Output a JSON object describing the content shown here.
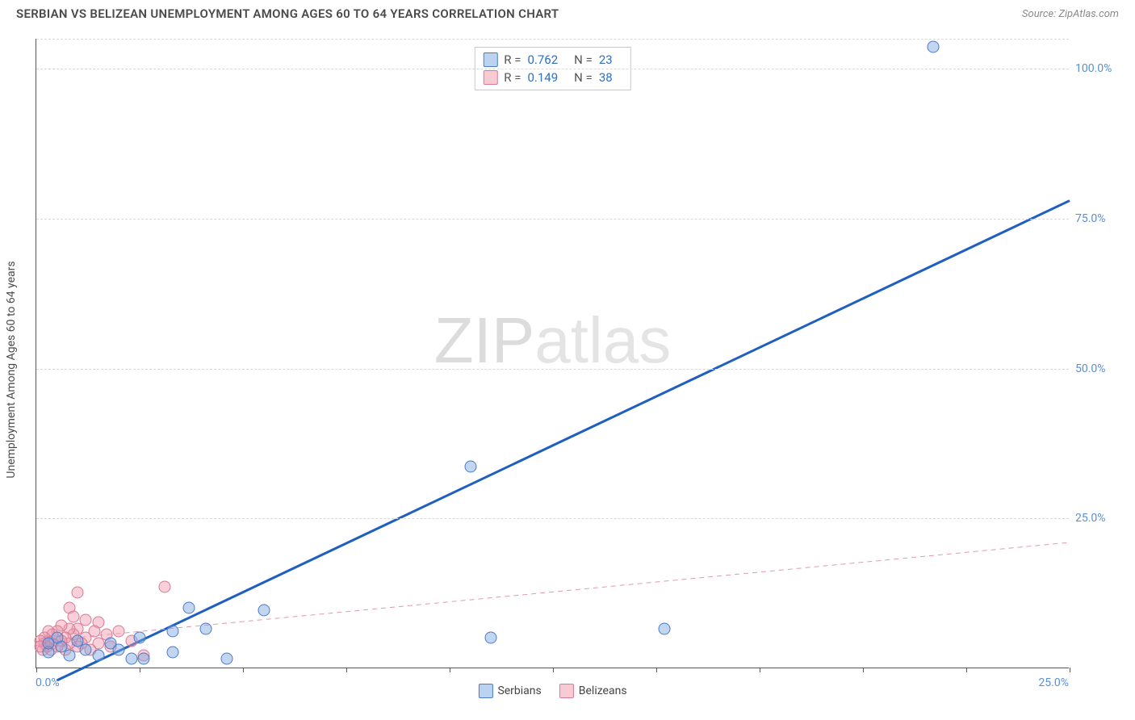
{
  "header": {
    "title": "SERBIAN VS BELIZEAN UNEMPLOYMENT AMONG AGES 60 TO 64 YEARS CORRELATION CHART",
    "source": "Source: ZipAtlas.com"
  },
  "watermark": {
    "bold": "ZIP",
    "thin": "atlas"
  },
  "chart": {
    "type": "scatter",
    "y_axis_label": "Unemployment Among Ages 60 to 64 years",
    "xlim": [
      0,
      25
    ],
    "ylim": [
      0,
      105
    ],
    "y_ticks": [
      25,
      50,
      75,
      100
    ],
    "y_tick_labels": [
      "25.0%",
      "50.0%",
      "75.0%",
      "100.0%"
    ],
    "x_ticks": [
      0,
      2.5,
      5,
      7.5,
      10,
      12.5,
      15,
      17.5,
      20,
      22.5,
      25
    ],
    "x_tick_labels_shown": {
      "0": "0.0%",
      "25": "25.0%"
    },
    "grid_color": "#d8d8d8",
    "background_color": "#ffffff",
    "series": {
      "serbians": {
        "label": "Serbians",
        "color_fill": "rgba(120,165,225,0.45)",
        "color_stroke": "#4a7bc8",
        "trend": {
          "x1": 0.5,
          "y1": -2,
          "x2": 25,
          "y2": 78,
          "stroke": "#1f5fc0",
          "width": 3,
          "dash": "none"
        },
        "stats": {
          "R": "0.762",
          "N": "23"
        },
        "points": [
          {
            "x": 21.7,
            "y": 103.5
          },
          {
            "x": 10.5,
            "y": 33.5
          },
          {
            "x": 15.2,
            "y": 6.5
          },
          {
            "x": 11.0,
            "y": 5.0
          },
          {
            "x": 5.5,
            "y": 9.5
          },
          {
            "x": 4.6,
            "y": 1.5
          },
          {
            "x": 4.1,
            "y": 6.5
          },
          {
            "x": 3.7,
            "y": 10.0
          },
          {
            "x": 3.3,
            "y": 2.5
          },
          {
            "x": 3.3,
            "y": 6.0
          },
          {
            "x": 2.6,
            "y": 1.5
          },
          {
            "x": 2.5,
            "y": 5.0
          },
          {
            "x": 2.3,
            "y": 1.5
          },
          {
            "x": 2.0,
            "y": 3.0
          },
          {
            "x": 1.8,
            "y": 4.0
          },
          {
            "x": 1.5,
            "y": 2.0
          },
          {
            "x": 1.2,
            "y": 3.0
          },
          {
            "x": 1.0,
            "y": 4.5
          },
          {
            "x": 0.8,
            "y": 2.0
          },
          {
            "x": 0.6,
            "y": 3.5
          },
          {
            "x": 0.5,
            "y": 5.0
          },
          {
            "x": 0.3,
            "y": 2.5
          },
          {
            "x": 0.3,
            "y": 4.0
          }
        ]
      },
      "belizeans": {
        "label": "Belizeans",
        "color_fill": "rgba(240,150,170,0.45)",
        "color_stroke": "#d87a95",
        "trend": {
          "x1": 0,
          "y1": 4.5,
          "x2": 25,
          "y2": 21,
          "stroke": "#e09aad",
          "width": 1,
          "dash": "6,5"
        },
        "stats": {
          "R": "0.149",
          "N": "38"
        },
        "points": [
          {
            "x": 3.1,
            "y": 13.5
          },
          {
            "x": 1.0,
            "y": 12.5
          },
          {
            "x": 0.8,
            "y": 10.0
          },
          {
            "x": 2.6,
            "y": 2.0
          },
          {
            "x": 2.3,
            "y": 4.5
          },
          {
            "x": 2.0,
            "y": 6.0
          },
          {
            "x": 1.8,
            "y": 3.5
          },
          {
            "x": 1.7,
            "y": 5.5
          },
          {
            "x": 1.5,
            "y": 7.5
          },
          {
            "x": 1.5,
            "y": 4.0
          },
          {
            "x": 1.4,
            "y": 6.0
          },
          {
            "x": 1.3,
            "y": 3.0
          },
          {
            "x": 1.2,
            "y": 5.0
          },
          {
            "x": 1.2,
            "y": 8.0
          },
          {
            "x": 1.1,
            "y": 4.0
          },
          {
            "x": 1.0,
            "y": 6.5
          },
          {
            "x": 1.0,
            "y": 3.5
          },
          {
            "x": 0.9,
            "y": 5.5
          },
          {
            "x": 0.9,
            "y": 8.5
          },
          {
            "x": 0.8,
            "y": 4.0
          },
          {
            "x": 0.8,
            "y": 6.5
          },
          {
            "x": 0.7,
            "y": 3.0
          },
          {
            "x": 0.7,
            "y": 5.0
          },
          {
            "x": 0.6,
            "y": 7.0
          },
          {
            "x": 0.6,
            "y": 4.5
          },
          {
            "x": 0.5,
            "y": 3.5
          },
          {
            "x": 0.5,
            "y": 6.0
          },
          {
            "x": 0.4,
            "y": 4.0
          },
          {
            "x": 0.4,
            "y": 5.5
          },
          {
            "x": 0.35,
            "y": 3.0
          },
          {
            "x": 0.3,
            "y": 4.5
          },
          {
            "x": 0.3,
            "y": 6.0
          },
          {
            "x": 0.25,
            "y": 3.5
          },
          {
            "x": 0.2,
            "y": 5.0
          },
          {
            "x": 0.2,
            "y": 4.0
          },
          {
            "x": 0.15,
            "y": 3.0
          },
          {
            "x": 0.1,
            "y": 4.5
          },
          {
            "x": 0.1,
            "y": 3.5
          }
        ]
      }
    }
  },
  "legend_stats": {
    "r_label": "R =",
    "n_label": "N ="
  }
}
